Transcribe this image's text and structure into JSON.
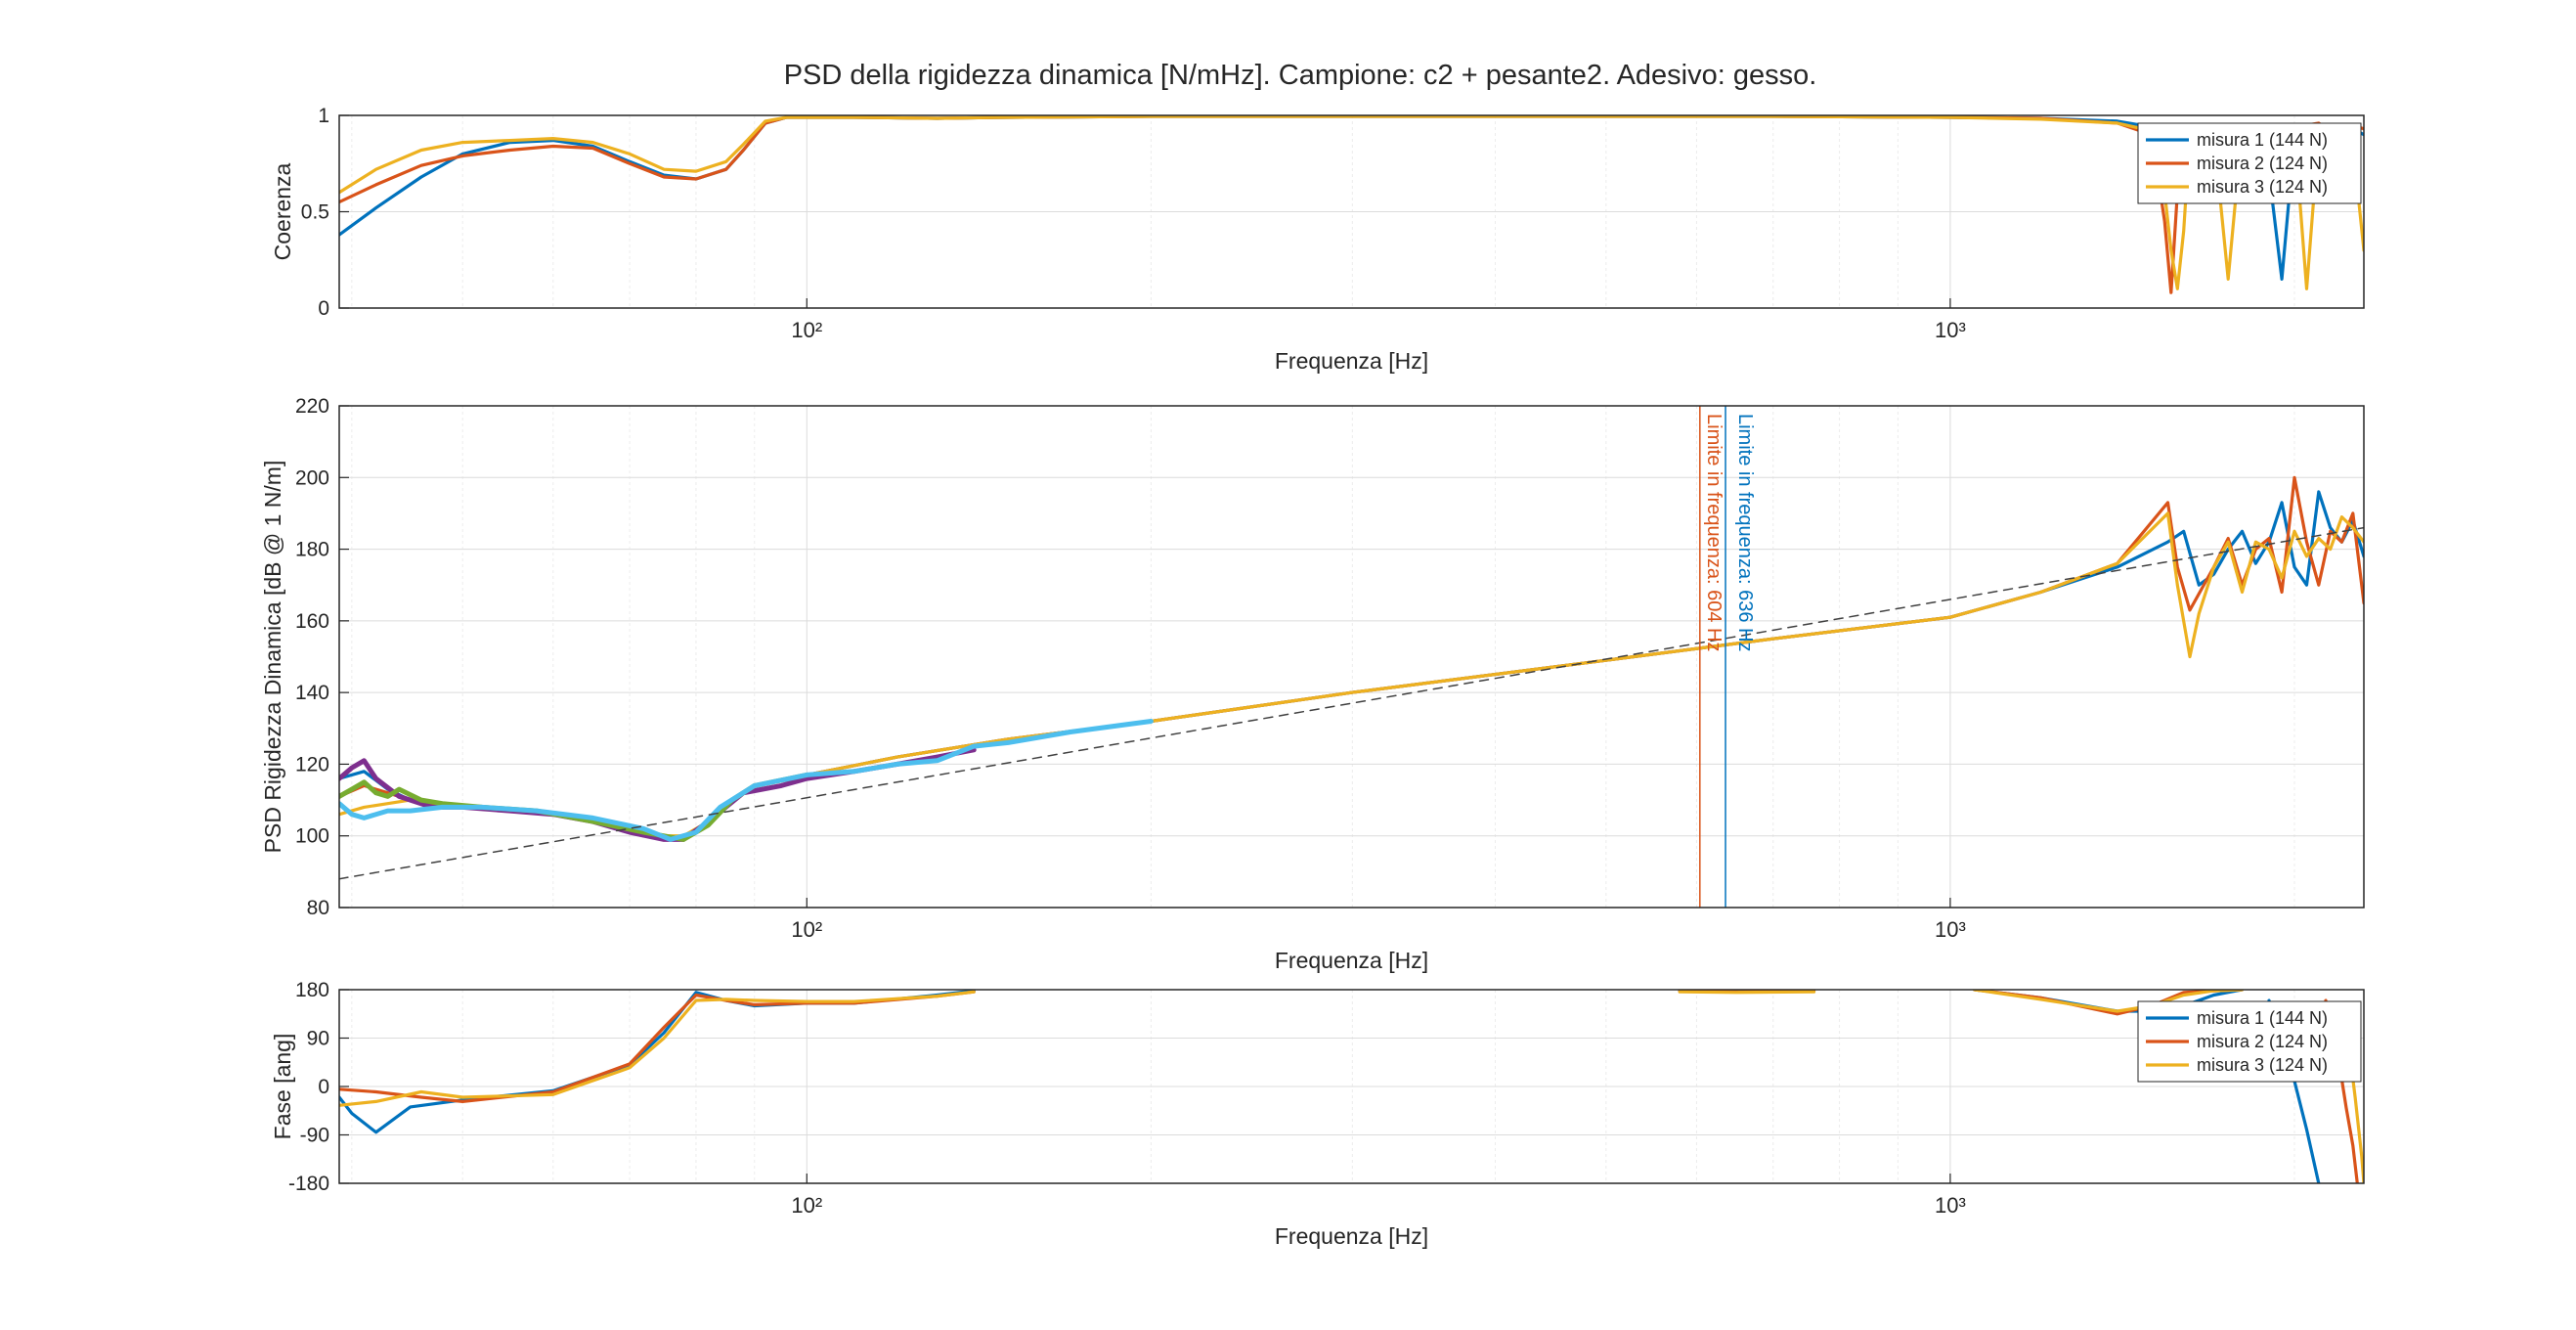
{
  "figure": {
    "title": "PSD della rigidezza dinamica [N/mHz]. Campione: c2 + pesante2. Adesivo: gesso."
  },
  "colors": {
    "misura1": "#0072BD",
    "misura2": "#D95319",
    "misura3": "#EDB120",
    "extra_purple": "#7E2F8E",
    "extra_green": "#77AC30",
    "extra_cyan": "#4DBEEE",
    "trend": "#404040",
    "grid": "#e6e6e6",
    "axis": "#262626"
  },
  "chart_data": [
    {
      "id": "coerenza",
      "type": "line",
      "xscale": "log",
      "xlim": [
        39,
        2300
      ],
      "ylim": [
        0,
        1
      ],
      "xlabel": "Frequenza [Hz]",
      "ylabel": "Coerenza",
      "xticks": [
        100,
        1000
      ],
      "xtick_labels": [
        "10²",
        "10³"
      ],
      "yticks": [
        0,
        0.5,
        1
      ],
      "ytick_labels": [
        "0",
        "0.5",
        "1"
      ],
      "legend": {
        "position": "top-right",
        "entries": [
          "misura 1 (144 N)",
          "misura 2 (124 N)",
          "misura 3 (124 N)"
        ]
      },
      "series": [
        {
          "name": "misura 1 (144 N)",
          "color": "misura1",
          "x": [
            39,
            42,
            46,
            50,
            55,
            60,
            65,
            70,
            75,
            80,
            85,
            88,
            92,
            96,
            100,
            110,
            130,
            150,
            200,
            300,
            500,
            700,
            1000,
            1200,
            1400,
            1500,
            1560,
            1580,
            1620,
            1700,
            1800,
            1900,
            1950,
            2000,
            2050,
            2100,
            2150,
            2200,
            2250,
            2300
          ],
          "y": [
            0.38,
            0.52,
            0.68,
            0.8,
            0.86,
            0.87,
            0.84,
            0.76,
            0.69,
            0.67,
            0.72,
            0.82,
            0.96,
            0.99,
            0.99,
            0.99,
            0.985,
            0.99,
            0.995,
            0.995,
            0.995,
            0.995,
            0.99,
            0.985,
            0.97,
            0.94,
            0.7,
            0.65,
            0.92,
            0.95,
            0.93,
            0.7,
            0.15,
            0.88,
            0.95,
            0.95,
            0.93,
            0.95,
            0.93,
            0.9
          ]
        },
        {
          "name": "misura 2 (124 N)",
          "color": "misura2",
          "x": [
            39,
            42,
            46,
            50,
            55,
            60,
            65,
            70,
            75,
            80,
            85,
            88,
            92,
            96,
            100,
            110,
            130,
            150,
            200,
            300,
            500,
            700,
            1000,
            1200,
            1400,
            1500,
            1540,
            1560,
            1580,
            1600,
            1650,
            1700,
            1750,
            1800,
            1850,
            1900,
            1950,
            2000,
            2050,
            2100,
            2150,
            2200,
            2250,
            2300
          ],
          "y": [
            0.55,
            0.64,
            0.74,
            0.79,
            0.82,
            0.84,
            0.83,
            0.75,
            0.68,
            0.67,
            0.72,
            0.82,
            0.96,
            0.99,
            0.99,
            0.99,
            0.985,
            0.99,
            0.995,
            0.995,
            0.995,
            0.995,
            0.99,
            0.985,
            0.96,
            0.9,
            0.45,
            0.08,
            0.6,
            0.93,
            0.95,
            0.9,
            0.93,
            0.95,
            0.9,
            0.95,
            0.9,
            0.93,
            0.95,
            0.96,
            0.92,
            0.55,
            0.95,
            0.93
          ]
        },
        {
          "name": "misura 3 (124 N)",
          "color": "misura3",
          "x": [
            39,
            42,
            46,
            50,
            55,
            60,
            65,
            70,
            75,
            80,
            85,
            88,
            92,
            96,
            100,
            110,
            130,
            150,
            200,
            300,
            500,
            700,
            1000,
            1200,
            1400,
            1500,
            1540,
            1560,
            1580,
            1600,
            1620,
            1650,
            1700,
            1750,
            1800,
            1850,
            1900,
            1950,
            2000,
            2050,
            2100,
            2150,
            2200,
            2250,
            2300
          ],
          "y": [
            0.6,
            0.72,
            0.82,
            0.86,
            0.87,
            0.88,
            0.86,
            0.8,
            0.72,
            0.71,
            0.76,
            0.85,
            0.97,
            0.99,
            0.99,
            0.99,
            0.985,
            0.99,
            0.995,
            0.995,
            0.995,
            0.995,
            0.99,
            0.98,
            0.96,
            0.92,
            0.6,
            0.3,
            0.1,
            0.4,
            0.9,
            0.95,
            0.9,
            0.15,
            0.93,
            0.95,
            0.9,
            0.95,
            0.92,
            0.1,
            0.9,
            0.92,
            0.94,
            0.85,
            0.3
          ]
        }
      ]
    },
    {
      "id": "psd",
      "type": "line",
      "xscale": "log",
      "xlim": [
        39,
        2300
      ],
      "ylim": [
        80,
        220
      ],
      "xlabel": "Frequenza [Hz]",
      "ylabel": "PSD Rigidezza Dinamica [dB @ 1 N/m]",
      "xticks": [
        100,
        1000
      ],
      "xtick_labels": [
        "10²",
        "10³"
      ],
      "yticks": [
        80,
        100,
        120,
        140,
        160,
        180,
        200,
        220
      ],
      "annotations": [
        {
          "text": "Limite in frequenza: 604 Hz",
          "x": 604,
          "color": "misura2"
        },
        {
          "text": "Limite in frequenza: 636 Hz",
          "x": 636,
          "color": "misura1"
        }
      ],
      "series": [
        {
          "color": "misura1",
          "x": [
            39,
            41,
            43,
            45,
            48,
            52,
            58,
            65,
            72,
            78,
            82,
            86,
            90,
            100,
            120,
            150,
            200,
            300,
            500,
            700,
            1000,
            1200,
            1400,
            1550,
            1600,
            1650,
            1700,
            1750,
            1800,
            1850,
            1900,
            1950,
            2000,
            2050,
            2100,
            2150,
            2200,
            2250,
            2300
          ],
          "y": [
            116,
            118,
            113,
            110,
            108,
            108,
            107,
            104,
            100,
            99,
            103,
            110,
            114,
            117,
            122,
            127,
            132,
            140,
            149,
            155,
            161,
            168,
            175,
            182,
            185,
            170,
            173,
            180,
            185,
            176,
            182,
            193,
            175,
            170,
            196,
            186,
            182,
            188,
            178
          ]
        },
        {
          "color": "misura2",
          "x": [
            39,
            41,
            43,
            45,
            48,
            52,
            58,
            65,
            72,
            78,
            82,
            86,
            90,
            100,
            120,
            150,
            200,
            300,
            500,
            700,
            1000,
            1200,
            1400,
            1550,
            1580,
            1620,
            1700,
            1750,
            1800,
            1850,
            1900,
            1950,
            2000,
            2050,
            2100,
            2150,
            2200,
            2250,
            2300
          ],
          "y": [
            111,
            114,
            112,
            110,
            108,
            108,
            107,
            104,
            100,
            99,
            103,
            110,
            114,
            117,
            122,
            127,
            132,
            140,
            149,
            155,
            161,
            168,
            176,
            193,
            175,
            163,
            175,
            183,
            170,
            180,
            183,
            168,
            200,
            182,
            170,
            185,
            182,
            190,
            165
          ]
        },
        {
          "color": "misura3",
          "x": [
            39,
            41,
            43,
            45,
            48,
            52,
            58,
            65,
            72,
            78,
            82,
            86,
            90,
            100,
            120,
            150,
            200,
            300,
            500,
            700,
            1000,
            1200,
            1400,
            1550,
            1580,
            1620,
            1650,
            1700,
            1750,
            1800,
            1850,
            1900,
            1950,
            2000,
            2050,
            2100,
            2150,
            2200,
            2250,
            2300
          ],
          "y": [
            106,
            108,
            109,
            110,
            109,
            108,
            107,
            104,
            100,
            100,
            104,
            110,
            114,
            117,
            122,
            127,
            132,
            140,
            149,
            155,
            161,
            168,
            176,
            190,
            170,
            150,
            162,
            175,
            182,
            168,
            182,
            180,
            172,
            185,
            178,
            183,
            180,
            189,
            186,
            182
          ]
        },
        {
          "color": "extra_purple",
          "x": [
            39,
            40,
            41,
            42,
            44,
            47,
            50,
            55,
            60,
            65,
            70,
            75,
            78,
            82,
            88,
            95,
            100,
            110,
            120,
            130,
            140
          ],
          "y": [
            116,
            119,
            121,
            116,
            111,
            108,
            108,
            107,
            106,
            104,
            101,
            99,
            99,
            104,
            112,
            114,
            116,
            118,
            120,
            122,
            124
          ]
        },
        {
          "color": "extra_green",
          "x": [
            39,
            40,
            41,
            42,
            43,
            44,
            46,
            48,
            52,
            58,
            65,
            72,
            78,
            82,
            86,
            90,
            100
          ],
          "y": [
            111,
            113,
            115,
            112,
            111,
            113,
            110,
            109,
            108,
            107,
            104,
            101,
            99,
            103,
            110,
            114,
            117
          ]
        },
        {
          "color": "extra_cyan",
          "x": [
            39,
            40,
            41,
            43,
            45,
            48,
            52,
            58,
            65,
            72,
            76,
            80,
            84,
            90,
            100,
            110,
            120,
            130,
            140,
            150,
            170,
            200
          ],
          "y": [
            109,
            106,
            105,
            107,
            107,
            108,
            108,
            107,
            105,
            102,
            99,
            101,
            108,
            114,
            117,
            118,
            120,
            121,
            125,
            126,
            129,
            132
          ]
        },
        {
          "color": "trend",
          "dashed": true,
          "x": [
            39,
            2300
          ],
          "y": [
            88,
            186
          ]
        }
      ]
    },
    {
      "id": "fase",
      "type": "line",
      "xscale": "log",
      "xlim": [
        39,
        2300
      ],
      "ylim": [
        -180,
        180
      ],
      "xlabel": "Frequenza [Hz]",
      "ylabel": "Fase [ang]",
      "xticks": [
        100,
        1000
      ],
      "xtick_labels": [
        "10²",
        "10³"
      ],
      "yticks": [
        -180,
        -90,
        0,
        90,
        180
      ],
      "legend": {
        "position": "top-right",
        "entries": [
          "misura 1 (144 N)",
          "misura 2 (124 N)",
          "misura 3 (124 N)"
        ]
      },
      "series": [
        {
          "name": "misura 1 (144 N)",
          "color": "misura1",
          "segments": [
            {
              "x": [
                39,
                40,
                42,
                45,
                50,
                60,
                70,
                75,
                80,
                85,
                90,
                100,
                110,
                130,
                140
              ],
              "y": [
                -20,
                -50,
                -85,
                -38,
                -25,
                -8,
                40,
                100,
                175,
                160,
                150,
                155,
                155,
                170,
                178
              ]
            },
            {
              "x": [
                580,
                650,
                760
              ],
              "y": [
                178,
                177,
                178
              ]
            },
            {
              "x": [
                1050,
                1200,
                1400,
                1500,
                1600,
                1700,
                1800
              ],
              "y": [
                180,
                165,
                140,
                140,
                150,
                170,
                180
              ]
            },
            {
              "x": [
                1900,
                1950,
                2000,
                2050,
                2100
              ],
              "y": [
                160,
                60,
                10,
                -80,
                -180
              ]
            }
          ]
        },
        {
          "name": "misura 2 (124 N)",
          "color": "misura2",
          "segments": [
            {
              "x": [
                39,
                42,
                46,
                50,
                60,
                70,
                75,
                80,
                85,
                90,
                100,
                110,
                130,
                140
              ],
              "y": [
                -5,
                -10,
                -20,
                -28,
                -10,
                42,
                110,
                170,
                160,
                152,
                155,
                155,
                168,
                176
              ]
            },
            {
              "x": [
                580,
                650,
                760
              ],
              "y": [
                177,
                176,
                177
              ]
            },
            {
              "x": [
                1050,
                1200,
                1400,
                1500,
                1600,
                1700,
                1800
              ],
              "y": [
                180,
                165,
                135,
                150,
                175,
                178,
                180
              ]
            },
            {
              "x": [
                2130,
                2160,
                2190,
                2220,
                2250,
                2270
              ],
              "y": [
                160,
                110,
                40,
                -40,
                -110,
                -180
              ]
            }
          ]
        },
        {
          "name": "misura 3 (124 N)",
          "color": "misura3",
          "segments": [
            {
              "x": [
                39,
                42,
                46,
                50,
                60,
                70,
                75,
                80,
                85,
                90,
                100,
                110,
                130,
                140
              ],
              "y": [
                -35,
                -28,
                -10,
                -20,
                -15,
                35,
                90,
                160,
                162,
                160,
                158,
                158,
                168,
                176
              ]
            },
            {
              "x": [
                580,
                650,
                760
              ],
              "y": [
                176,
                175,
                176
              ]
            },
            {
              "x": [
                1050,
                1200,
                1400,
                1500,
                1600,
                1700,
                1800
              ],
              "y": [
                180,
                162,
                140,
                150,
                170,
                178,
                180
              ]
            },
            {
              "x": [
                2200,
                2230,
                2260,
                2290,
                2300
              ],
              "y": [
                150,
                80,
                -20,
                -130,
                -180
              ]
            }
          ]
        }
      ]
    }
  ]
}
